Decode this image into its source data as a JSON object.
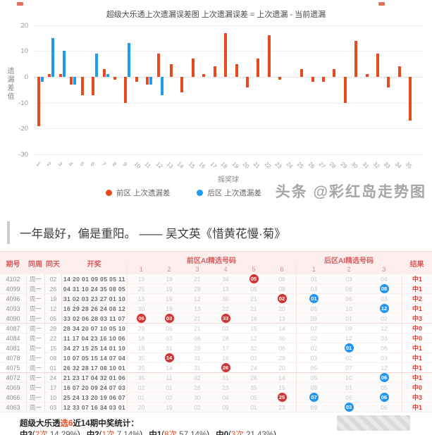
{
  "chart_data": {
    "type": "bar",
    "title": "超级大乐透上次遗漏误差图 上次遗漏误差 = 上次遗漏 - 当前遗漏",
    "xlabel": "摇奖球",
    "ylabel": "遗漏差值",
    "ylim": [
      -30,
      20
    ],
    "yticks": [
      20,
      10,
      0,
      -10,
      -20,
      -30
    ],
    "grid": true,
    "legend_position": "bottom",
    "x": [
      1,
      2,
      3,
      4,
      5,
      6,
      7,
      8,
      9,
      10,
      11,
      12,
      13,
      14,
      15,
      16,
      17,
      18,
      19,
      20,
      21,
      22,
      23,
      24,
      25,
      26,
      27,
      28,
      29,
      30,
      31,
      32,
      33,
      34,
      35
    ],
    "series": [
      {
        "name": "前区 上次遗漏差",
        "color": "#e8491f",
        "values": [
          -19,
          1,
          1,
          -3,
          -7,
          -7,
          3,
          -1,
          -10,
          -2,
          -3,
          9,
          5,
          -6,
          7,
          1,
          4,
          17,
          5,
          -4,
          7,
          16,
          -1,
          0,
          3,
          -2,
          -2,
          3,
          -10,
          14,
          1,
          9,
          -4,
          4,
          -17
        ]
      },
      {
        "name": "后区 上次遗漏差",
        "color": "#1f9cf0",
        "values": [
          -2,
          15,
          10,
          -3,
          0,
          9,
          1,
          0,
          13,
          0,
          -3,
          -7
        ]
      }
    ]
  },
  "watermark": "头条 @彩红岛走势图",
  "quote": "一年最好，偏是重阳。 —— 吴文英《惜黄花慢·菊》",
  "table": {
    "headers": {
      "issue": "期号",
      "week": "同周",
      "day": "同天",
      "draw": "开奖",
      "front_group": "前区AI精选号码",
      "back_group": "后区AI精选号码",
      "result": "结果"
    },
    "front_subcols": [
      "1",
      "2",
      "3",
      "4",
      "5",
      "6"
    ],
    "back_subcols": [
      "1",
      "2",
      "3"
    ],
    "rows": [
      {
        "issue": "4102",
        "week": "周一",
        "day": "02",
        "draw": "14 20 01 09 05 05 11",
        "front": [
          "13",
          "19",
          "21",
          "34",
          "05",
          "08"
        ],
        "front_hits": [
          4
        ],
        "back": [
          "01",
          "03",
          "04"
        ],
        "back_hits": [],
        "result": "中1"
      },
      {
        "issue": "4099",
        "week": "周一",
        "day": "26",
        "draw": "04 31 10 24 35 08 05",
        "front": [
          "25",
          "19",
          "28",
          "13",
          "05",
          "08"
        ],
        "front_hits": [],
        "back": [
          "03",
          "06",
          "08"
        ],
        "back_hits": [
          2
        ],
        "result": "中1"
      },
      {
        "issue": "4096",
        "week": "周一",
        "day": "19",
        "draw": "31 02 03 23 27 01 10",
        "front": [
          "13",
          "19",
          "12",
          "30",
          "21",
          "02"
        ],
        "front_hits": [
          5
        ],
        "back": [
          "01",
          "06",
          "03"
        ],
        "back_hits": [
          0
        ],
        "result": "中2"
      },
      {
        "issue": "4093",
        "week": "周一",
        "day": "12",
        "draw": "16 29 28 26 24 08 12",
        "front": [
          "30",
          "19",
          "13",
          "22",
          "21",
          "20"
        ],
        "front_hits": [],
        "back": [
          "05",
          "10",
          "12"
        ],
        "back_hits": [
          2
        ],
        "result": "中1"
      },
      {
        "issue": "4090",
        "week": "周一",
        "day": "05",
        "draw": "33 02 06 28 03 11 07",
        "front": [
          "06",
          "03",
          "21",
          "33",
          "16",
          "13"
        ],
        "front_hits": [
          0,
          1,
          3
        ],
        "back": [
          "09",
          "01",
          "02"
        ],
        "back_hits": [],
        "result": "中3"
      },
      {
        "issue": "4087",
        "week": "周一",
        "day": "29",
        "draw": "28 34 20 07 10 05 10",
        "front": [
          "29",
          "06",
          "21",
          "03",
          "15",
          "14"
        ],
        "front_hits": [],
        "back": [
          "02",
          "09",
          "12"
        ],
        "back_hits": [],
        "result": "中0"
      },
      {
        "issue": "4084",
        "week": "周一",
        "day": "22",
        "draw": "11 17 04 23 16 10 06",
        "front": [
          "18",
          "03",
          "06",
          "28",
          "12",
          "30"
        ],
        "front_hits": [],
        "back": [
          "02",
          "12",
          "03"
        ],
        "back_hits": [],
        "result": "中0"
      },
      {
        "issue": "4081",
        "week": "周一",
        "day": "15",
        "draw": "34 27 15 25 14 01 10",
        "front": [
          "18",
          "31",
          "29",
          "17",
          "32",
          "06"
        ],
        "front_hits": [],
        "back": [
          "02",
          "01",
          "06"
        ],
        "back_hits": [
          1
        ],
        "result": "中1"
      },
      {
        "issue": "4078",
        "week": "周一",
        "day": "08",
        "draw": "10 07 05 15 14 07 04",
        "front": [
          "35",
          "14",
          "31",
          "16",
          "03",
          "29"
        ],
        "front_hits": [
          1
        ],
        "back": [
          "03",
          "02",
          "03"
        ],
        "back_hits": [],
        "result": "中1"
      },
      {
        "issue": "4075",
        "week": "周一",
        "day": "01",
        "draw": "26 32 28 17 08 10 01",
        "front": [
          "35",
          "14",
          "31",
          "26",
          "24",
          "20"
        ],
        "front_hits": [
          3
        ],
        "back": [
          "05",
          "07",
          "12"
        ],
        "back_hits": [],
        "result": "中1"
      },
      {
        "issue": "4072",
        "week": "周一",
        "day": "24",
        "draw": "21 23 17 04 32 01 06",
        "front": [
          "35",
          "11",
          "02",
          "31",
          "26",
          "14"
        ],
        "front_hits": [],
        "back": [
          "05",
          "10",
          "06"
        ],
        "back_hits": [
          2
        ],
        "result": "中1"
      },
      {
        "issue": "4069",
        "week": "周一",
        "day": "17",
        "draw": "16 07 20 09 24 07 03",
        "front": [
          "02",
          "01",
          "26",
          "23",
          "35",
          "15"
        ],
        "front_hits": [],
        "back": [
          "09",
          "01",
          "05"
        ],
        "back_hits": [],
        "result": "中0"
      },
      {
        "issue": "4066",
        "week": "周一",
        "day": "10",
        "draw": "25 24 13 20 19 06 07",
        "front": [
          "01",
          "02",
          "30",
          "04",
          "05",
          "25"
        ],
        "front_hits": [
          5
        ],
        "back": [
          "07",
          "05",
          "06"
        ],
        "back_hits": [
          0,
          2
        ],
        "result": "中3"
      },
      {
        "issue": "4063",
        "week": "周一",
        "day": "03",
        "draw": "12 33 07 16 34 03 01",
        "front": [
          "20",
          "19",
          "02",
          "09",
          "01",
          "23"
        ],
        "front_hits": [],
        "back": [
          "09",
          "03",
          "06"
        ],
        "back_hits": [
          1
        ],
        "result": "中1"
      }
    ]
  },
  "summary": {
    "prefix": "超级大乐透",
    "highlight": "选6",
    "suffix": "近14期中奖统计：",
    "stats": [
      {
        "label": "中3",
        "count": "2次",
        "pct": "14.29%"
      },
      {
        "label": "中2",
        "count": "1次",
        "pct": "7.14%"
      },
      {
        "label": "中1",
        "count": "8次",
        "pct": "57.14%"
      },
      {
        "label": "中0",
        "count": "3次",
        "pct": "21.43%"
      }
    ]
  }
}
